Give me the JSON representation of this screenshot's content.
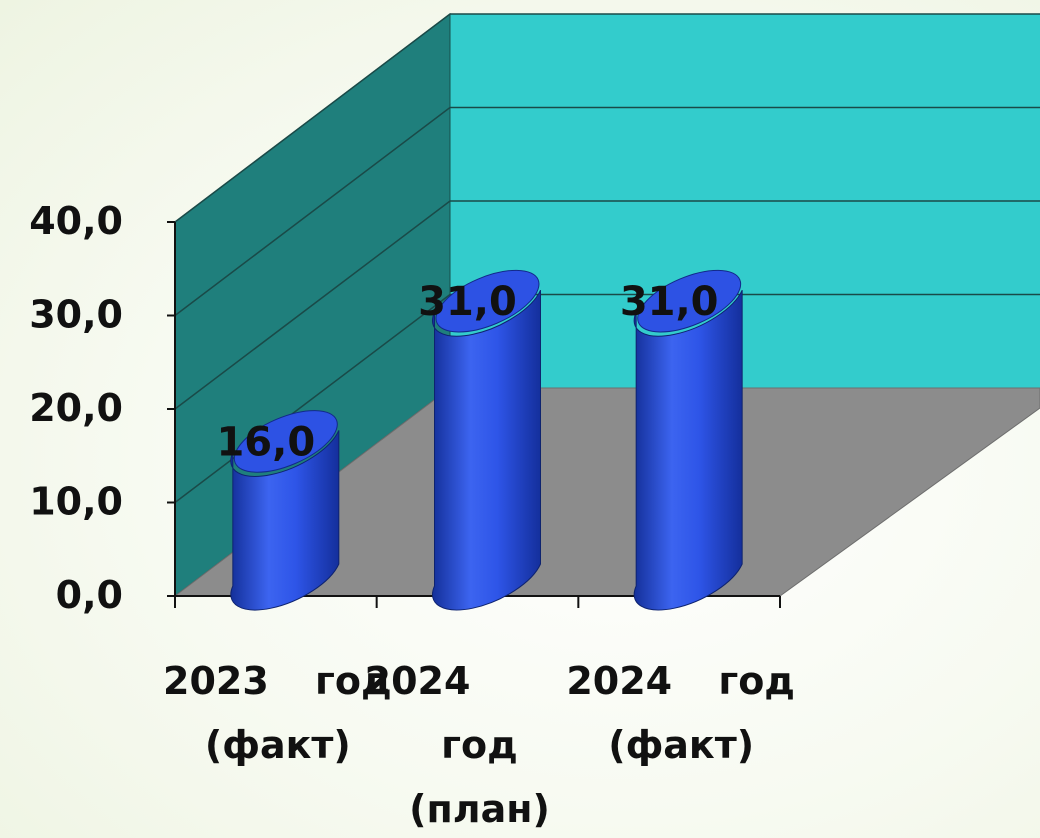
{
  "chart_data": {
    "type": "bar",
    "style": "3d-cylinder",
    "categories": [
      "2023 год (факт)",
      "2024 год (план)",
      "2024 год (факт)"
    ],
    "category_lines": [
      [
        "2023",
        "год",
        "(факт)"
      ],
      [
        "2024",
        "год",
        "(план)"
      ],
      [
        "2024",
        "год",
        "(факт)"
      ]
    ],
    "values": [
      16.0,
      31.0,
      31.0
    ],
    "data_labels": [
      "16,0",
      "31,0",
      "31,0"
    ],
    "ylim": [
      0,
      40
    ],
    "yticks": [
      0,
      10,
      20,
      30,
      40
    ],
    "ytick_labels": [
      "0,0",
      "10,0",
      "20,0",
      "30,0",
      "40,0"
    ],
    "grid": true,
    "legend": "none",
    "colors": {
      "bar": "#2f55e6",
      "side_wall": "#1f7f7c",
      "back_wall": "#33cccc",
      "floor": "#8c8c8c",
      "gridline": "#1a4a48"
    }
  }
}
